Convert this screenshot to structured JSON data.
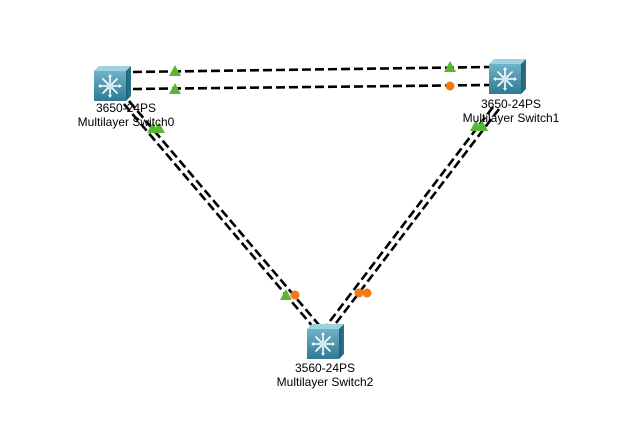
{
  "devices": [
    {
      "id": "switch0",
      "model": "3650-24PS",
      "name": "Multilayer Switch0",
      "icon": "multilayer-switch-icon"
    },
    {
      "id": "switch1",
      "model": "3650-24PS",
      "name": "Multilayer Switch1",
      "icon": "multilayer-switch-icon"
    },
    {
      "id": "switch2",
      "model": "3560-24PS",
      "name": "Multilayer Switch2",
      "icon": "multilayer-switch-icon"
    }
  ],
  "links": [
    {
      "from": "switch0",
      "to": "switch1",
      "end_a_status": "up",
      "end_b_status": "up"
    },
    {
      "from": "switch0",
      "to": "switch1",
      "end_a_status": "up",
      "end_b_status": "blocking"
    },
    {
      "from": "switch0",
      "to": "switch2",
      "end_a_status": "up",
      "end_b_status": "up"
    },
    {
      "from": "switch0",
      "to": "switch2",
      "end_a_status": "up",
      "end_b_status": "blocking"
    },
    {
      "from": "switch1",
      "to": "switch2",
      "end_a_status": "up",
      "end_b_status": "blocking"
    },
    {
      "from": "switch1",
      "to": "switch2",
      "end_a_status": "up",
      "end_b_status": "blocking"
    }
  ],
  "colors": {
    "background": "#ffffff",
    "link": "#000000",
    "status_up": "#5cb531",
    "status_blocking": "#f07a14",
    "device_body": "#3f8ea8",
    "device_top": "#8dc7d8"
  }
}
